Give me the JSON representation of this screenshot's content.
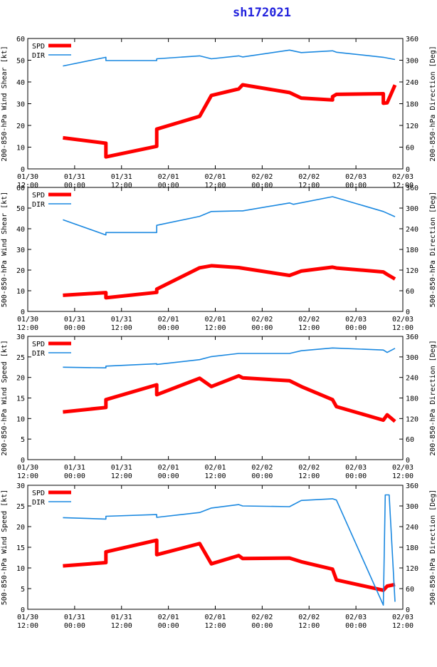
{
  "title": "sh172021",
  "x_ticks": [
    {
      "date": "01/30",
      "time": "12:00",
      "t": 0
    },
    {
      "date": "01/31",
      "time": "00:00",
      "t": 12
    },
    {
      "date": "01/31",
      "time": "12:00",
      "t": 24
    },
    {
      "date": "02/01",
      "time": "00:00",
      "t": 36
    },
    {
      "date": "02/01",
      "time": "12:00",
      "t": 48
    },
    {
      "date": "02/02",
      "time": "00:00",
      "t": 60
    },
    {
      "date": "02/02",
      "time": "12:00",
      "t": 72
    },
    {
      "date": "02/03",
      "time": "00:00",
      "t": 84
    },
    {
      "date": "02/03",
      "time": "12:00",
      "t": 96
    }
  ],
  "colors": {
    "spd": "#ff0000",
    "dir": "#1a88e0",
    "title": "#2222dd"
  },
  "chart_data": [
    {
      "type": "line",
      "ylabel": "200-850-hPa Wind Shear [kt]",
      "y2label": "200-850-hPa Direction [Deg]",
      "xlim": [
        0,
        96
      ],
      "ylim": [
        0,
        60
      ],
      "y2lim": [
        0,
        360
      ],
      "y_ticks": [
        0,
        10,
        20,
        30,
        40,
        50,
        60
      ],
      "y2_ticks": [
        0,
        60,
        120,
        180,
        240,
        300,
        360
      ],
      "legend": [
        "SPD",
        "DIR"
      ],
      "series": [
        {
          "name": "SPD",
          "axis": "left",
          "x": [
            9,
            20,
            20,
            33,
            33,
            44,
            47,
            54,
            55,
            67,
            70,
            78,
            78,
            79,
            91,
            91,
            92,
            94
          ],
          "y": [
            14.3,
            11.8,
            5.5,
            10.4,
            18.3,
            24.2,
            33.8,
            36.8,
            38.7,
            35.1,
            32.6,
            31.7,
            33.2,
            34.3,
            34.6,
            30.2,
            30.4,
            38.6
          ]
        },
        {
          "name": "DIR",
          "axis": "right",
          "x": [
            9,
            20,
            20,
            33,
            33,
            44,
            47,
            54,
            55,
            67,
            70,
            78,
            79,
            91,
            94
          ],
          "y": [
            284,
            308,
            299,
            299,
            304,
            312,
            304,
            312,
            309,
            328,
            321,
            326,
            322,
            308,
            302
          ]
        }
      ]
    },
    {
      "type": "line",
      "ylabel": "500-850-hPa Wind Shear [kt]",
      "y2label": "500-850-hPa Direction [Deg]",
      "xlim": [
        0,
        96
      ],
      "ylim": [
        0,
        60
      ],
      "y2lim": [
        0,
        360
      ],
      "y_ticks": [
        0,
        10,
        20,
        30,
        40,
        50,
        60
      ],
      "y2_ticks": [
        0,
        60,
        120,
        180,
        240,
        300,
        360
      ],
      "legend": [
        "SPD",
        "DIR"
      ],
      "series": [
        {
          "name": "SPD",
          "axis": "left",
          "x": [
            9,
            20,
            20,
            33,
            33,
            44,
            47,
            54,
            55,
            67,
            70,
            78,
            79,
            91,
            92,
            94
          ],
          "y": [
            7.8,
            9.1,
            6.6,
            9.2,
            10.8,
            21.1,
            22.1,
            21.2,
            20.9,
            17.4,
            19.5,
            21.4,
            21.0,
            19.1,
            17.9,
            15.7
          ]
        },
        {
          "name": "DIR",
          "axis": "right",
          "x": [
            9,
            20,
            20,
            33,
            33,
            44,
            47,
            54,
            55,
            67,
            68,
            78,
            91,
            94
          ],
          "y": [
            266,
            222,
            229,
            229,
            250,
            276,
            290,
            292,
            292,
            315,
            311,
            333,
            290,
            275
          ]
        }
      ]
    },
    {
      "type": "line",
      "ylabel": "200-850-hPa Wind Speed [kt]",
      "y2label": "200-850-hPa Direction [Deg]",
      "xlim": [
        0,
        96
      ],
      "ylim": [
        0,
        30
      ],
      "y2lim": [
        0,
        360
      ],
      "y_ticks": [
        0,
        5,
        10,
        15,
        20,
        25,
        30
      ],
      "y2_ticks": [
        0,
        60,
        120,
        180,
        240,
        300,
        360
      ],
      "legend": [
        "SPD",
        "DIR"
      ],
      "series": [
        {
          "name": "SPD",
          "axis": "left",
          "x": [
            9,
            20,
            20,
            33,
            33,
            44,
            47,
            54,
            55,
            67,
            70,
            78,
            79,
            91,
            92,
            94
          ],
          "y": [
            11.6,
            12.7,
            14.6,
            18.2,
            15.8,
            19.8,
            17.8,
            20.4,
            19.9,
            19.2,
            17.8,
            14.6,
            12.9,
            9.6,
            10.9,
            9.3
          ]
        },
        {
          "name": "DIR",
          "axis": "right",
          "x": [
            9,
            20,
            20,
            33,
            33,
            44,
            47,
            54,
            55,
            67,
            70,
            78,
            91,
            92,
            94
          ],
          "y": [
            270,
            268,
            273,
            280,
            278,
            292,
            301,
            310,
            310,
            310,
            318,
            326,
            320,
            313,
            325
          ]
        }
      ]
    },
    {
      "type": "line",
      "ylabel": "500-850-hPa Wind Speed [kt]",
      "y2label": "500-850-hPa Direction [Deg]",
      "xlim": [
        0,
        96
      ],
      "ylim": [
        0,
        30
      ],
      "y2lim": [
        0,
        360
      ],
      "y_ticks": [
        0,
        5,
        10,
        15,
        20,
        25,
        30
      ],
      "y2_ticks": [
        0,
        60,
        120,
        180,
        240,
        300,
        360
      ],
      "legend": [
        "SPD",
        "DIR"
      ],
      "series": [
        {
          "name": "SPD",
          "axis": "left",
          "x": [
            9,
            20,
            20,
            33,
            33,
            44,
            47,
            54,
            55,
            67,
            70,
            78,
            79,
            91,
            92,
            94
          ],
          "y": [
            10.5,
            11.3,
            13.9,
            16.7,
            13.2,
            15.9,
            11.0,
            13.0,
            12.3,
            12.4,
            11.5,
            9.7,
            7.1,
            4.6,
            5.6,
            6.0
          ]
        },
        {
          "name": "DIR",
          "axis": "right",
          "x": [
            9,
            20,
            20,
            33,
            33,
            44,
            47,
            54,
            55,
            67,
            70,
            78,
            79,
            91,
            91.5,
            92.5,
            94
          ],
          "y": [
            266,
            262,
            270,
            275,
            267,
            281,
            294,
            304,
            300,
            298,
            316,
            321,
            317,
            12,
            332,
            332,
            22
          ]
        }
      ]
    }
  ]
}
